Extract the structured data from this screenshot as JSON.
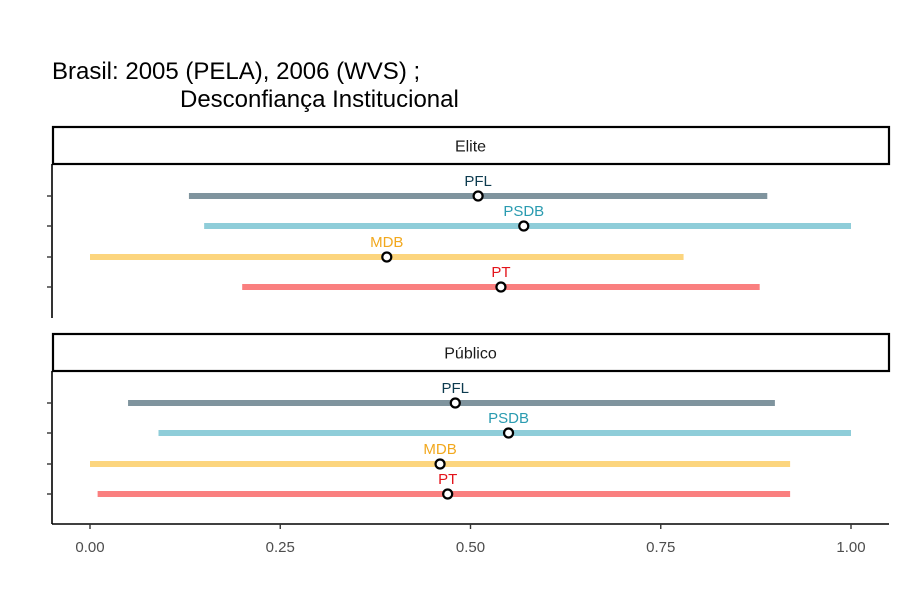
{
  "chart_data": {
    "type": "dot-range",
    "title_line1": "Brasil: 2005 (PELA), 2006 (WVS) ;",
    "title_line2": "Desconfiança Institucional",
    "xlabel": "",
    "ylabel": "",
    "xlim": [
      0,
      1
    ],
    "x_ticks": [
      "0.00",
      "0.25",
      "0.50",
      "0.75",
      "1.00"
    ],
    "x_tick_values": [
      0,
      0.25,
      0.5,
      0.75,
      1.0
    ],
    "colors": {
      "PFL": "#7f949e",
      "PSDB": "#8fcdd9",
      "MDB": "#fcd57e",
      "PT": "#fa7f7f"
    },
    "label_colors": {
      "PFL": "#0d3b4f",
      "PSDB": "#2a9bb0",
      "MDB": "#f2a81d",
      "PT": "#e3141b"
    },
    "panels": [
      {
        "name": "Elite",
        "parties": [
          {
            "name": "PFL",
            "low": 0.13,
            "mid": 0.51,
            "high": 0.89
          },
          {
            "name": "PSDB",
            "low": 0.15,
            "mid": 0.57,
            "high": 1.0
          },
          {
            "name": "MDB",
            "low": 0.0,
            "mid": 0.39,
            "high": 0.78
          },
          {
            "name": "PT",
            "low": 0.2,
            "mid": 0.54,
            "high": 0.88
          }
        ]
      },
      {
        "name": "Público",
        "parties": [
          {
            "name": "PFL",
            "low": 0.05,
            "mid": 0.48,
            "high": 0.9
          },
          {
            "name": "PSDB",
            "low": 0.09,
            "mid": 0.55,
            "high": 1.0
          },
          {
            "name": "MDB",
            "low": 0.0,
            "mid": 0.46,
            "high": 0.92
          },
          {
            "name": "PT",
            "low": 0.01,
            "mid": 0.47,
            "high": 0.92
          }
        ]
      }
    ]
  }
}
